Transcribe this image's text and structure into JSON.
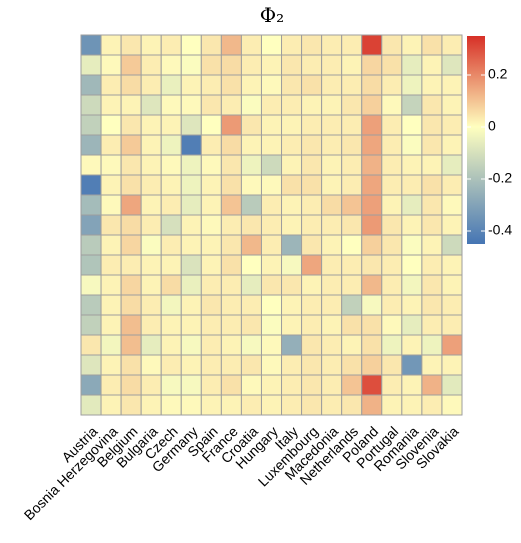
{
  "chart_data": {
    "type": "heatmap",
    "title": "Φ₂",
    "xlabel": "",
    "ylabel": "",
    "x_categories": [
      "Austria",
      "Bosnia Herzegovina",
      "Belgium",
      "Bulgaria",
      "Czech",
      "Germany",
      "Spain",
      "France",
      "Croatia",
      "Hungary",
      "Italy",
      "Luxembourg",
      "Macedonia",
      "Netherlands",
      "Poland",
      "Portugal",
      "Romania",
      "Slovenia",
      "Slovakia"
    ],
    "y_row_labels": [],
    "values": [
      [
        -0.35,
        0.02,
        0.04,
        0.02,
        0.03,
        0.0,
        0.04,
        0.12,
        0.03,
        0.0,
        0.03,
        0.04,
        0.03,
        0.03,
        0.32,
        0.04,
        0.02,
        0.05,
        0.03
      ],
      [
        -0.06,
        0.01,
        0.09,
        0.03,
        0.01,
        -0.01,
        0.05,
        0.06,
        0.03,
        0.02,
        0.04,
        0.03,
        0.03,
        0.02,
        0.07,
        0.05,
        -0.06,
        0.02,
        -0.08
      ],
      [
        -0.23,
        0.03,
        0.06,
        0.03,
        -0.05,
        0.02,
        0.03,
        0.05,
        0.02,
        0.01,
        0.04,
        0.05,
        0.03,
        0.03,
        0.06,
        0.03,
        -0.04,
        0.02,
        0.02
      ],
      [
        -0.12,
        0.02,
        0.02,
        -0.08,
        0.01,
        0.01,
        0.04,
        0.03,
        -0.01,
        0.03,
        0.03,
        0.02,
        0.02,
        0.04,
        0.08,
        0.01,
        -0.14,
        0.04,
        0.02
      ],
      [
        -0.15,
        0.0,
        0.04,
        0.02,
        0.02,
        -0.08,
        0.0,
        0.17,
        0.04,
        0.02,
        0.02,
        0.03,
        0.03,
        0.03,
        0.16,
        0.03,
        0.0,
        0.04,
        0.03
      ],
      [
        -0.24,
        0.03,
        0.09,
        0.02,
        -0.04,
        -0.42,
        0.03,
        0.06,
        0.02,
        0.02,
        0.03,
        0.04,
        0.03,
        0.04,
        0.15,
        0.03,
        -0.01,
        0.04,
        0.02
      ],
      [
        0.01,
        0.01,
        0.04,
        0.02,
        0.01,
        -0.04,
        0.01,
        0.04,
        -0.04,
        -0.12,
        0.02,
        0.04,
        0.02,
        0.03,
        0.13,
        0.03,
        0.02,
        0.02,
        -0.06
      ],
      [
        -0.42,
        0.02,
        0.05,
        0.03,
        0.02,
        -0.04,
        0.02,
        0.05,
        0.01,
        0.01,
        0.05,
        0.05,
        0.02,
        0.03,
        0.15,
        0.03,
        0.03,
        0.05,
        0.03
      ],
      [
        -0.22,
        0.01,
        0.15,
        0.02,
        0.03,
        -0.06,
        0.02,
        0.1,
        -0.17,
        0.03,
        0.02,
        0.03,
        0.06,
        0.1,
        0.16,
        0.02,
        -0.06,
        0.04,
        0.01
      ],
      [
        -0.3,
        0.04,
        0.06,
        0.03,
        -0.1,
        0.02,
        0.01,
        0.03,
        0.04,
        0.03,
        0.02,
        0.03,
        0.03,
        0.04,
        0.17,
        0.04,
        0.02,
        0.04,
        0.02
      ],
      [
        -0.17,
        0.02,
        0.07,
        -0.01,
        0.03,
        0.02,
        0.02,
        0.04,
        0.12,
        0.03,
        -0.24,
        0.04,
        0.02,
        0.0,
        0.08,
        0.04,
        -0.01,
        0.02,
        -0.12
      ],
      [
        -0.19,
        0.03,
        0.03,
        0.02,
        0.02,
        -0.09,
        0.02,
        0.05,
        0.0,
        0.02,
        -0.02,
        0.15,
        0.03,
        0.03,
        0.04,
        0.03,
        0.0,
        0.03,
        0.02
      ],
      [
        -0.02,
        0.02,
        0.07,
        0.02,
        0.06,
        -0.05,
        0.03,
        0.03,
        -0.06,
        0.04,
        0.04,
        0.02,
        0.03,
        0.03,
        0.12,
        0.03,
        -0.03,
        0.04,
        0.02
      ],
      [
        -0.17,
        0.02,
        0.06,
        0.03,
        -0.03,
        0.02,
        0.04,
        0.03,
        0.03,
        0.0,
        0.02,
        0.03,
        0.03,
        -0.15,
        -0.02,
        0.03,
        0.02,
        0.04,
        0.03
      ],
      [
        -0.15,
        0.02,
        0.11,
        0.03,
        0.02,
        0.02,
        0.03,
        0.03,
        0.04,
        -0.01,
        0.02,
        0.03,
        0.02,
        0.05,
        0.05,
        0.01,
        -0.06,
        0.03,
        0.03
      ],
      [
        0.04,
        -0.03,
        0.11,
        -0.06,
        0.02,
        -0.02,
        0.03,
        0.02,
        -0.02,
        0.01,
        -0.26,
        0.04,
        0.03,
        0.02,
        0.05,
        -0.04,
        0.02,
        -0.04,
        0.16
      ],
      [
        -0.08,
        0.02,
        0.05,
        0.01,
        0.03,
        0.02,
        0.03,
        0.03,
        0.04,
        0.01,
        0.03,
        0.04,
        0.03,
        0.05,
        0.08,
        0.04,
        -0.34,
        0.02,
        0.02
      ],
      [
        -0.28,
        0.03,
        0.06,
        0.03,
        -0.02,
        -0.02,
        0.03,
        0.05,
        0.01,
        0.02,
        0.03,
        0.04,
        0.03,
        0.1,
        0.3,
        0.03,
        0.02,
        0.13,
        -0.07
      ],
      [
        -0.07,
        0.02,
        0.04,
        0.02,
        0.01,
        0.01,
        0.02,
        0.02,
        0.03,
        0.02,
        0.03,
        0.04,
        0.03,
        0.04,
        0.13,
        0.02,
        0.02,
        0.03,
        0.01
      ]
    ],
    "color_scale": {
      "type": "diverging",
      "min": -0.45,
      "max": 0.35,
      "low": "#4575b4",
      "mid": "#ffffbf",
      "high": "#d73027",
      "ticks": [
        0.2,
        0,
        -0.2,
        -0.4
      ],
      "tick_labels": [
        "0.2",
        "0",
        "-0.2",
        "-0.4"
      ]
    },
    "grid": true,
    "grid_color": "#9e9e9e",
    "legend": "right"
  }
}
